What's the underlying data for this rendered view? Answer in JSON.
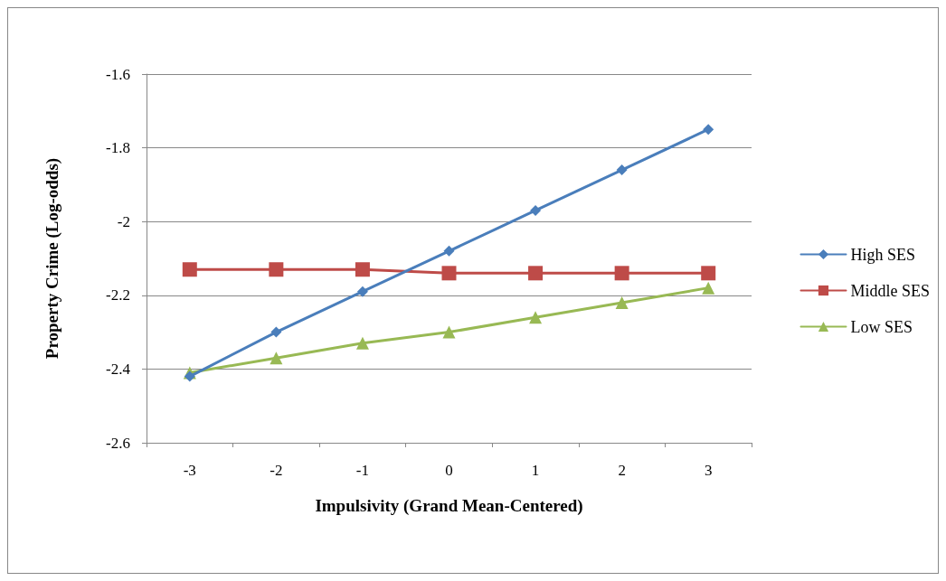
{
  "chart_data": {
    "type": "line",
    "xlabel": "Impulsivity (Grand Mean-Centered)",
    "ylabel": "Property Crime (Log-odds)",
    "categories": [
      "-3",
      "-2",
      "-1",
      "0",
      "1",
      "2",
      "3"
    ],
    "series": [
      {
        "name": "High SES",
        "color": "#4a7ebb",
        "marker": "diamond",
        "values": [
          -2.42,
          -2.3,
          -2.19,
          -2.08,
          -1.97,
          -1.86,
          -1.75
        ]
      },
      {
        "name": "Middle SES",
        "color": "#be4b48",
        "marker": "square",
        "values": [
          -2.13,
          -2.13,
          -2.13,
          -2.14,
          -2.14,
          -2.14,
          -2.14
        ]
      },
      {
        "name": "Low SES",
        "color": "#98b954",
        "marker": "triangle",
        "values": [
          -2.41,
          -2.37,
          -2.33,
          -2.3,
          -2.26,
          -2.22,
          -2.18
        ]
      }
    ],
    "ylim": [
      -2.6,
      -1.6
    ],
    "yticks": [
      -2.6,
      -2.4,
      -2.2,
      -2,
      -1.8,
      -1.6
    ],
    "grid": "y",
    "legend": "right",
    "line_style": "solid"
  }
}
